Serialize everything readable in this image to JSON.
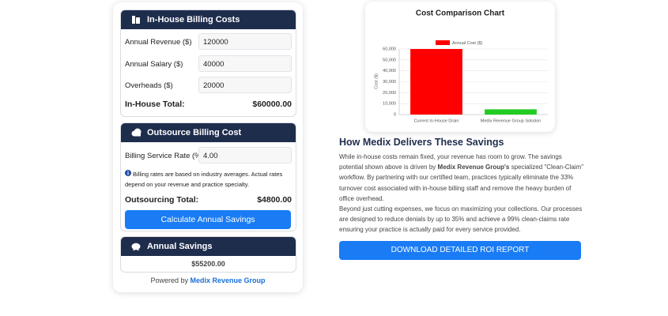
{
  "inhouse": {
    "title": "In-House Billing Costs",
    "fields": [
      {
        "label": "Annual Revenue ($)",
        "value": "120000"
      },
      {
        "label": "Annual Salary ($)",
        "value": "40000"
      },
      {
        "label": "Overheads ($)",
        "value": "20000"
      }
    ],
    "total_label": "In-House Total:",
    "total": "$60000.00"
  },
  "outsource": {
    "title": "Outsource Billing Cost",
    "fields": [
      {
        "label": "Billing Service Rate (%)",
        "value": "4.00"
      }
    ],
    "note": "Billing rates are based on industry averages. Actual rates depend on your revenue and practice specialty.",
    "total_label": "Outsourcing Total:",
    "total": "$4800.00",
    "button": "Calculate Annual Savings"
  },
  "savings": {
    "title": "Annual Savings",
    "value": "$55200.00"
  },
  "footer": {
    "prefix": "Powered by",
    "brand": "Medix Revenue Group"
  },
  "chart_data": {
    "type": "bar",
    "title": "Cost Comparison Chart",
    "y_label": "Cost ($)",
    "categories": [
      "Current In-House Drain",
      "Medix Revenue Group Solution"
    ],
    "series": [
      {
        "name": "Annual Cost ($)",
        "values": [
          60000,
          4800
        ],
        "colors": [
          "#ff0000",
          "#22cc22"
        ]
      }
    ],
    "ylim": [
      0,
      60000
    ],
    "yticks": [
      0,
      {
        "value": 10000,
        "label": "10,000"
      },
      {
        "value": 20000,
        "label": "20,000"
      },
      {
        "value": 30000,
        "label": "30,000"
      },
      {
        "value": 40000,
        "label": "40,000"
      },
      {
        "value": 50000,
        "label": "50,000"
      },
      {
        "value": 60000,
        "label": "60,000"
      }
    ],
    "grid": true
  },
  "article": {
    "heading": "How Medix Delivers These Savings",
    "p1": [
      "While in-house costs remain fixed, your revenue has room to grow. The savings potential shown above is driven by ",
      "Medix Revenue Group's",
      " specialized \"Clean-Claim\" workflow. By partnering with our certified team, practices typically eliminate the 33% turnover cost associated with in-house billing staff and remove the heavy burden of office overhead."
    ],
    "p2": "Beyond just cutting expenses, we focus on maximizing your collections. Our processes are designed to reduce denials by up to 35% and achieve a 99% clean-claims rate ensuring your practice is actually paid for every service provided.",
    "button": "DOWNLOAD DETAILED ROI REPORT"
  }
}
